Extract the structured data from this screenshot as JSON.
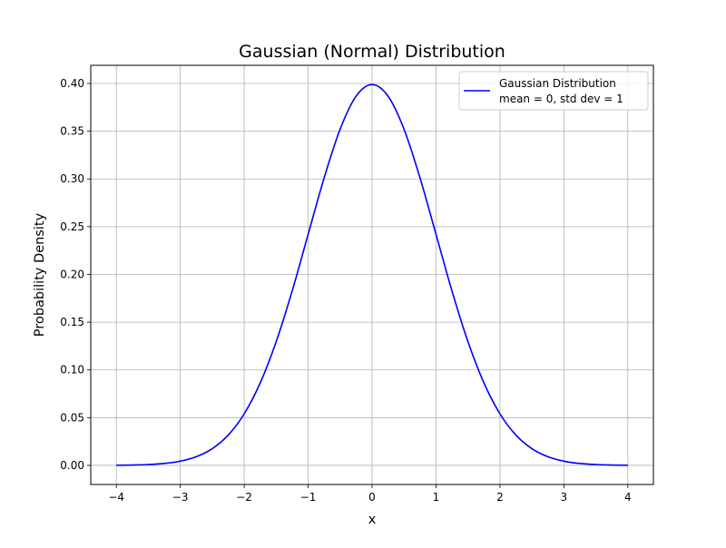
{
  "chart_data": {
    "type": "line",
    "title": "Gaussian (Normal) Distribution",
    "xlabel": "x",
    "ylabel": "Probability Density",
    "xlim": [
      -4.4,
      4.4
    ],
    "ylim": [
      -0.02,
      0.419
    ],
    "x_ticks": [
      -4,
      -3,
      -2,
      -1,
      0,
      1,
      2,
      3,
      4
    ],
    "x_tick_labels": [
      "−4",
      "−3",
      "−2",
      "−1",
      "0",
      "1",
      "2",
      "3",
      "4"
    ],
    "y_ticks": [
      0.0,
      0.05,
      0.1,
      0.15,
      0.2,
      0.25,
      0.3,
      0.35,
      0.4
    ],
    "y_tick_labels": [
      "0.00",
      "0.05",
      "0.10",
      "0.15",
      "0.20",
      "0.25",
      "0.30",
      "0.35",
      "0.40"
    ],
    "grid": true,
    "legend_position": "top-right",
    "series": [
      {
        "name": "Gaussian Distribution\nmean = 0, std dev = 1",
        "legend_lines": [
          "Gaussian Distribution",
          "mean = 0, std dev = 1"
        ],
        "color": "#0000ff",
        "x": [
          -4.0,
          -3.75,
          -3.5,
          -3.25,
          -3.0,
          -2.75,
          -2.5,
          -2.25,
          -2.0,
          -1.75,
          -1.5,
          -1.25,
          -1.0,
          -0.75,
          -0.5,
          -0.25,
          0.0,
          0.25,
          0.5,
          0.75,
          1.0,
          1.25,
          1.5,
          1.75,
          2.0,
          2.25,
          2.5,
          2.75,
          3.0,
          3.25,
          3.5,
          3.75,
          4.0
        ],
        "y": [
          0.0001,
          0.0004,
          0.0009,
          0.002,
          0.0044,
          0.0091,
          0.0175,
          0.0317,
          0.054,
          0.0863,
          0.1295,
          0.1826,
          0.242,
          0.3011,
          0.3521,
          0.3867,
          0.3989,
          0.3867,
          0.3521,
          0.3011,
          0.242,
          0.1826,
          0.1295,
          0.0863,
          0.054,
          0.0317,
          0.0175,
          0.0091,
          0.0044,
          0.002,
          0.0009,
          0.0004,
          0.0001
        ]
      }
    ]
  },
  "colors": {
    "background": "#ffffff",
    "grid": "#b0b0b0",
    "axes": "#000000",
    "legend_border": "#cccccc"
  }
}
